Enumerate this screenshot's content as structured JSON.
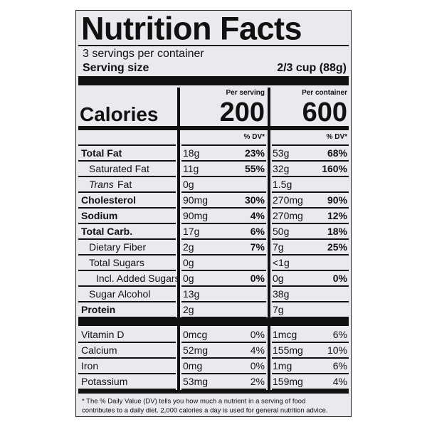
{
  "title": "Nutrition Facts",
  "servings": "3 servings per container",
  "serving_size_label": "Serving size",
  "serving_size_value": "2/3 cup (88g)",
  "columns": [
    "Per serving",
    "Per container"
  ],
  "calories_label": "Calories",
  "calories": [
    "200",
    "600"
  ],
  "dv_header": "% DV*",
  "nutrients": [
    {
      "name": "Total Fat",
      "bold": true,
      "indent": 0,
      "serving": [
        "18g",
        "23%"
      ],
      "container": [
        "53g",
        "68%"
      ]
    },
    {
      "name": "Saturated Fat",
      "indent": 1,
      "serving": [
        "11g",
        "55%"
      ],
      "container": [
        "32g",
        "160%"
      ]
    },
    {
      "name_italic": "Trans",
      "name": "Fat",
      "indent": 1,
      "serving": [
        "0g"
      ],
      "container": [
        "1.5g"
      ]
    },
    {
      "name": "Cholesterol",
      "bold": true,
      "indent": 0,
      "serving": [
        "90mg",
        "30%"
      ],
      "container": [
        "270mg",
        "90%"
      ]
    },
    {
      "name": "Sodium",
      "bold": true,
      "indent": 0,
      "serving": [
        "90mg",
        "4%"
      ],
      "container": [
        "270mg",
        "12%"
      ]
    },
    {
      "name": "Total Carb.",
      "bold": true,
      "indent": 0,
      "serving": [
        "17g",
        "6%"
      ],
      "container": [
        "50g",
        "18%"
      ]
    },
    {
      "name": "Dietary Fiber",
      "indent": 1,
      "serving": [
        "2g",
        "7%"
      ],
      "container": [
        "7g",
        "25%"
      ]
    },
    {
      "name": "Total Sugars",
      "indent": 1,
      "serving": [
        "0g"
      ],
      "container": [
        "<1g"
      ]
    },
    {
      "name": "Incl. Added Sugars",
      "indent": 2,
      "serving": [
        "0g",
        "0%"
      ],
      "container": [
        "0g",
        "0%"
      ]
    },
    {
      "name": "Sugar Alcohol",
      "indent": 1,
      "serving": [
        "13g"
      ],
      "container": [
        "38g"
      ]
    },
    {
      "name": "Protein",
      "bold": true,
      "indent": 0,
      "serving": [
        "2g"
      ],
      "container": [
        "7g"
      ]
    }
  ],
  "vitamins": [
    {
      "name": "Vitamin D",
      "serving": [
        "0mcg",
        "0%"
      ],
      "container": [
        "1mcg",
        "6%"
      ]
    },
    {
      "name": "Calcium",
      "serving": [
        "52mg",
        "4%"
      ],
      "container": [
        "155mg",
        "10%"
      ]
    },
    {
      "name": "Iron",
      "serving": [
        "0mg",
        "0%"
      ],
      "container": [
        "1mg",
        "6%"
      ]
    },
    {
      "name": "Potassium",
      "serving": [
        "53mg",
        "2%"
      ],
      "container": [
        "159mg",
        "4%"
      ]
    }
  ],
  "footnote": [
    "* The % Daily Value (DV) tells you how much a nutrient in a serving of food",
    "contributes to a daily diet. 2,000 calories a day is used for general nutrition advice."
  ]
}
